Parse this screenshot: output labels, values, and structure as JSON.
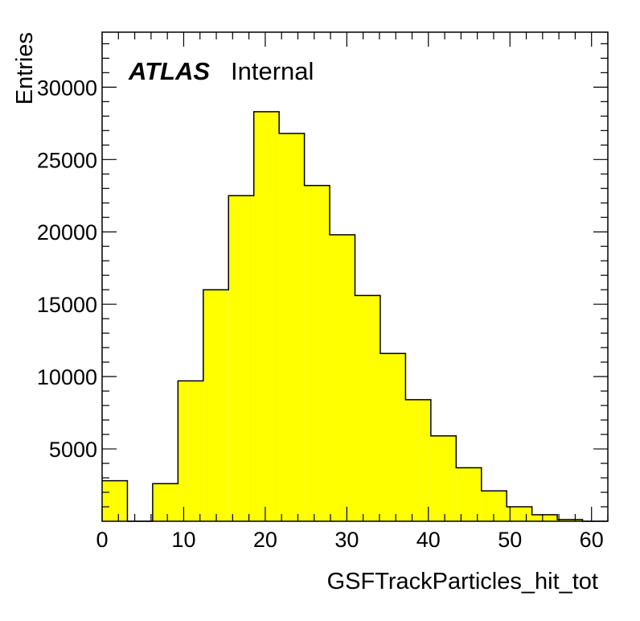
{
  "chart_data": {
    "type": "bar",
    "style": "histogram",
    "xlabel": "GSFTrackParticles_hit_tot",
    "ylabel": "Entries",
    "label_main": "ATLAS",
    "label_sub": "Internal",
    "xlim": [
      0,
      62
    ],
    "ylim": [
      0,
      33800
    ],
    "x_ticks": [
      0,
      10,
      20,
      30,
      40,
      50,
      60
    ],
    "y_ticks": [
      5000,
      10000,
      15000,
      20000,
      25000,
      30000
    ],
    "bin_edges": [
      0,
      3.1,
      6.2,
      9.3,
      12.4,
      15.5,
      18.6,
      21.7,
      24.8,
      27.9,
      31.0,
      34.1,
      37.2,
      40.3,
      43.4,
      46.5,
      49.6,
      52.7,
      55.8,
      58.9,
      62.0
    ],
    "values": [
      2800,
      0,
      2600,
      9700,
      16000,
      22500,
      28300,
      26800,
      23200,
      19800,
      15600,
      11600,
      8400,
      5900,
      3700,
      2100,
      1000,
      450,
      120,
      0
    ],
    "fill_color": "#ffff00",
    "line_color": "#000000"
  }
}
